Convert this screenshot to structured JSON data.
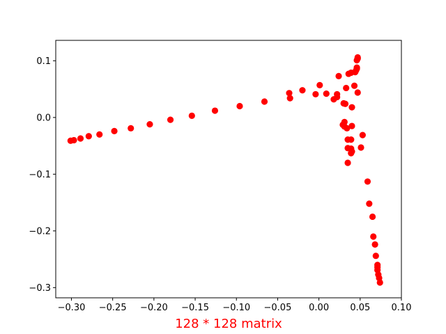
{
  "chart_data": {
    "type": "scatter",
    "title": "",
    "xlabel": "128 * 128 matrix",
    "ylabel": "",
    "xlim": [
      -0.319,
      0.1
    ],
    "ylim": [
      -0.318,
      0.136
    ],
    "x_ticks": [
      -0.3,
      -0.25,
      -0.2,
      -0.15,
      -0.1,
      -0.05,
      0.0,
      0.05,
      0.1
    ],
    "x_tick_labels": [
      "−0.30",
      "−0.25",
      "−0.20",
      "−0.15",
      "−0.10",
      "−0.05",
      "0.00",
      "0.05",
      "0.10"
    ],
    "y_ticks": [
      0.1,
      0.0,
      -0.1,
      -0.2,
      -0.3
    ],
    "y_tick_labels": [
      "0.1",
      "0.0",
      "−0.1",
      "−0.2",
      "−0.3"
    ],
    "grid": false,
    "legend": null,
    "colors": {
      "marker": "#ff0000",
      "xlabel": "#ff0000",
      "axes": "#000000"
    },
    "series": [
      {
        "points": [
          [
            -0.301,
            -0.041
          ],
          [
            -0.297,
            -0.04
          ],
          [
            -0.289,
            -0.037
          ],
          [
            -0.279,
            -0.033
          ],
          [
            -0.266,
            -0.03
          ],
          [
            -0.248,
            -0.024
          ],
          [
            -0.228,
            -0.019
          ],
          [
            -0.205,
            -0.012
          ],
          [
            -0.18,
            -0.004
          ],
          [
            -0.154,
            0.003
          ],
          [
            -0.126,
            0.012
          ],
          [
            -0.096,
            0.02
          ],
          [
            -0.066,
            0.028
          ],
          [
            -0.036,
            0.043
          ],
          [
            -0.035,
            0.034
          ],
          [
            -0.02,
            0.048
          ],
          [
            -0.004,
            0.041
          ],
          [
            0.001,
            0.057
          ],
          [
            0.009,
            0.042
          ],
          [
            0.018,
            0.032
          ],
          [
            0.022,
            0.036
          ],
          [
            0.022,
            0.041
          ],
          [
            0.024,
            0.073
          ],
          [
            0.03,
            0.025
          ],
          [
            0.032,
            0.024
          ],
          [
            0.033,
            0.052
          ],
          [
            0.036,
            0.077
          ],
          [
            0.039,
            0.079
          ],
          [
            0.04,
            0.018
          ],
          [
            0.043,
            0.056
          ],
          [
            0.044,
            0.08
          ],
          [
            0.045,
            0.083
          ],
          [
            0.046,
            0.086
          ],
          [
            0.046,
            0.088
          ],
          [
            0.046,
            0.101
          ],
          [
            0.047,
            0.104
          ],
          [
            0.047,
            0.106
          ],
          [
            0.047,
            0.044
          ],
          [
            0.029,
            -0.013
          ],
          [
            0.031,
            -0.008
          ],
          [
            0.031,
            -0.016
          ],
          [
            0.034,
            -0.019
          ],
          [
            0.035,
            -0.039
          ],
          [
            0.035,
            -0.054
          ],
          [
            0.035,
            -0.08
          ],
          [
            0.039,
            -0.039
          ],
          [
            0.039,
            -0.055
          ],
          [
            0.039,
            -0.063
          ],
          [
            0.04,
            -0.015
          ],
          [
            0.04,
            -0.06
          ],
          [
            0.051,
            -0.053
          ],
          [
            0.053,
            -0.031
          ],
          [
            0.059,
            -0.113
          ],
          [
            0.061,
            -0.152
          ],
          [
            0.065,
            -0.175
          ],
          [
            0.066,
            -0.21
          ],
          [
            0.068,
            -0.224
          ],
          [
            0.069,
            -0.244
          ],
          [
            0.071,
            -0.26
          ],
          [
            0.071,
            -0.264
          ],
          [
            0.071,
            -0.269
          ],
          [
            0.072,
            -0.277
          ],
          [
            0.073,
            -0.283
          ],
          [
            0.074,
            -0.291
          ]
        ]
      }
    ]
  }
}
